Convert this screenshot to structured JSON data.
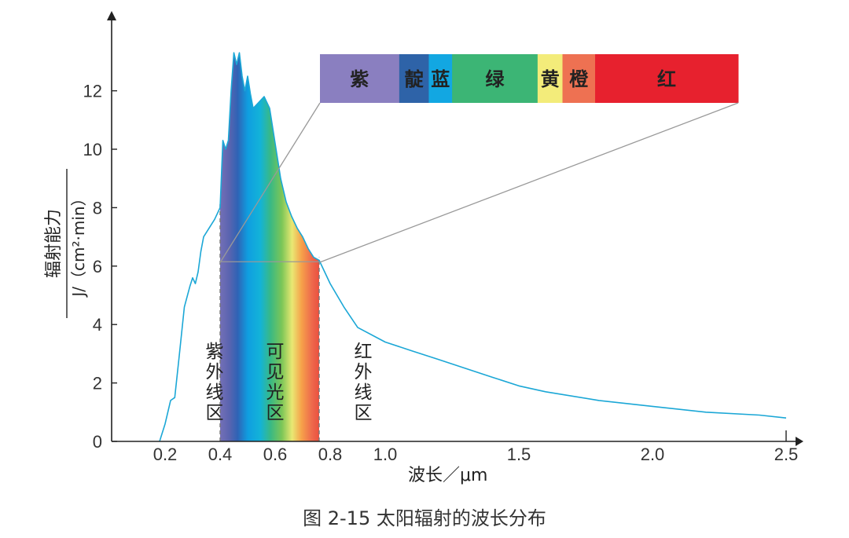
{
  "chart_data": {
    "type": "line",
    "caption": "图 2-15   太阳辐射的波长分布",
    "xlabel": "波长／μm",
    "ylabel_top": "辐射能力",
    "ylabel_bottom": "J/（cm²·min）",
    "xlim": [
      0.0,
      2.5
    ],
    "ylim": [
      0,
      14
    ],
    "x_ticks": [
      {
        "value": 0.2,
        "label": "0.2"
      },
      {
        "value": 0.4,
        "label": "0.4"
      },
      {
        "value": 0.6,
        "label": "0.6"
      },
      {
        "value": 0.8,
        "label": "0.8"
      },
      {
        "value": 1.0,
        "label": "1.0"
      },
      {
        "value": 1.5,
        "label": "1.5"
      },
      {
        "value": 2.0,
        "label": "2.0"
      },
      {
        "value": 2.5,
        "label": "2.5"
      }
    ],
    "y_ticks": [
      {
        "value": 0,
        "label": "0"
      },
      {
        "value": 2,
        "label": "2"
      },
      {
        "value": 4,
        "label": "4"
      },
      {
        "value": 6,
        "label": "6"
      },
      {
        "value": 8,
        "label": "8"
      },
      {
        "value": 10,
        "label": "10"
      },
      {
        "value": 12,
        "label": "12"
      }
    ],
    "series": [
      {
        "color": "#1ba7d6",
        "x": [
          0.18,
          0.2,
          0.22,
          0.235,
          0.25,
          0.27,
          0.29,
          0.3,
          0.31,
          0.32,
          0.33,
          0.34,
          0.36,
          0.38,
          0.4,
          0.41,
          0.42,
          0.43,
          0.44,
          0.45,
          0.46,
          0.47,
          0.48,
          0.49,
          0.5,
          0.51,
          0.52,
          0.54,
          0.56,
          0.58,
          0.6,
          0.62,
          0.64,
          0.66,
          0.68,
          0.7,
          0.72,
          0.74,
          0.76,
          0.8,
          0.85,
          0.9,
          1.0,
          1.1,
          1.2,
          1.3,
          1.4,
          1.5,
          1.6,
          1.8,
          2.0,
          2.2,
          2.4,
          2.5
        ],
        "y": [
          0.0,
          0.6,
          1.4,
          1.5,
          2.8,
          4.6,
          5.3,
          5.6,
          5.4,
          5.8,
          6.5,
          7.0,
          7.3,
          7.6,
          8.0,
          10.3,
          10.0,
          10.3,
          12.0,
          13.3,
          12.9,
          13.3,
          12.5,
          12.0,
          12.5,
          11.9,
          11.4,
          11.6,
          11.8,
          11.4,
          10.2,
          9.0,
          8.2,
          7.7,
          7.3,
          7.0,
          6.6,
          6.3,
          6.2,
          5.4,
          4.6,
          3.9,
          3.4,
          3.1,
          2.8,
          2.5,
          2.2,
          1.9,
          1.7,
          1.4,
          1.2,
          1.0,
          0.9,
          0.8
        ]
      }
    ],
    "regions": [
      {
        "label": "紫外线区",
        "x": 0.38
      },
      {
        "label": "可见光区",
        "x": 0.6
      },
      {
        "label": "红外线区",
        "x": 0.92
      }
    ],
    "visible_range": [
      0.4,
      0.76
    ],
    "boundary_y": 6.15,
    "spectrum_bar": [
      {
        "label": "紫",
        "color": "#8a7fc0",
        "weight": 1.02
      },
      {
        "label": "靛",
        "color": "#2e63a8",
        "weight": 0.38
      },
      {
        "label": "蓝",
        "color": "#12a7e2",
        "weight": 0.3
      },
      {
        "label": "绿",
        "color": "#3cb575",
        "weight": 1.1
      },
      {
        "label": "黄",
        "color": "#f3ec7a",
        "weight": 0.32
      },
      {
        "label": "橙",
        "color": "#ee7152",
        "weight": 0.42
      },
      {
        "label": "红",
        "color": "#e7212e",
        "weight": 1.84
      }
    ]
  }
}
